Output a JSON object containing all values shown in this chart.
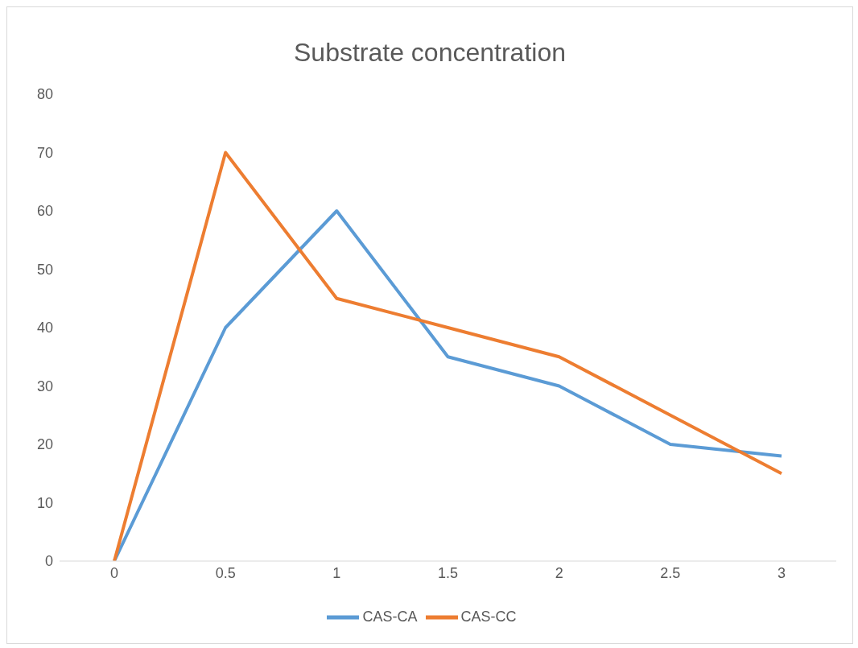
{
  "chart_data": {
    "type": "line",
    "title": "Substrate concentration",
    "categories": [
      "0",
      "0.5",
      "1",
      "1.5",
      "2",
      "2.5",
      "3"
    ],
    "series": [
      {
        "name": "CAS-CA",
        "color": "#5b9bd5",
        "values": [
          0,
          40,
          60,
          35,
          30,
          20,
          18
        ]
      },
      {
        "name": "CAS-CC",
        "color": "#ed7d31",
        "values": [
          0,
          70,
          45,
          40,
          35,
          25,
          15
        ]
      }
    ],
    "ylim": [
      0,
      80
    ],
    "yticks": [
      0,
      10,
      20,
      30,
      40,
      50,
      60,
      70,
      80
    ],
    "grid": false,
    "legend": "bottom",
    "marker": "none",
    "line_style": "solid"
  }
}
